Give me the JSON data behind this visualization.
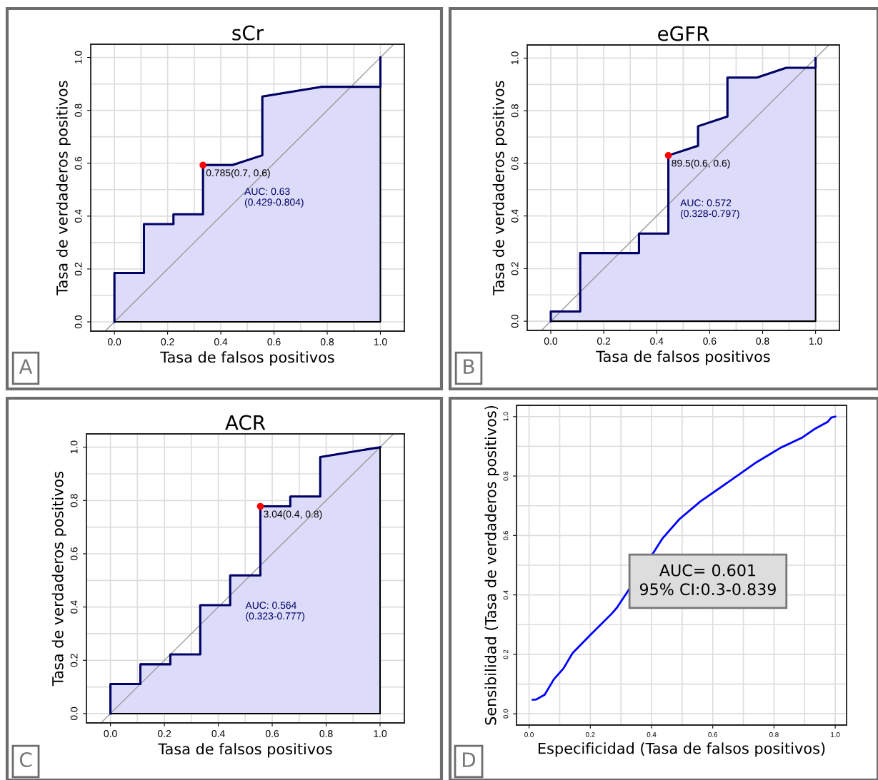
{
  "chart_data": [
    {
      "type": "area",
      "title": "sCr",
      "xlabel": "Tasa de falsos positivos",
      "ylabel": "Tasa de verdaderos positivos",
      "xlim": [
        -0.089,
        1.09
      ],
      "ylim": [
        -0.035,
        1.05
      ],
      "xticks": [
        {
          "value": 0,
          "label": "0.0"
        },
        {
          "value": 0.2,
          "label": "0.2"
        },
        {
          "value": 0.4,
          "label": "0.4"
        },
        {
          "value": 0.6,
          "label": "0.6"
        },
        {
          "value": 0.8,
          "label": "0.8"
        },
        {
          "value": 1,
          "label": "1.0"
        }
      ],
      "yticks": [
        {
          "value": 0,
          "label": "0.0"
        },
        {
          "value": 0.2,
          "label": "0.2"
        },
        {
          "value": 0.4,
          "label": "0.4"
        },
        {
          "value": 0.6,
          "label": "0.6"
        },
        {
          "value": 0.8,
          "label": "0.8"
        },
        {
          "value": 1,
          "label": "1.0"
        }
      ],
      "grid": true,
      "legend": false,
      "series": [
        {
          "color": "#000066",
          "x": [
            0,
            0,
            0.111,
            0.111,
            0.222,
            0.222,
            0.333,
            0.333,
            0.444,
            0.556,
            0.556,
            0.778,
            1,
            1
          ],
          "values": [
            0,
            0.185,
            0.185,
            0.37,
            0.37,
            0.407,
            0.407,
            0.593,
            0.593,
            0.63,
            0.852,
            0.889,
            0.889,
            1
          ]
        },
        {
          "type": "line",
          "color": "#999999",
          "x": [
            -0.035,
            1.05
          ],
          "values": [
            -0.035,
            1.05
          ]
        },
        {
          "type": "scatter",
          "color": "#ff0000",
          "marker": "circle",
          "x": [
            0.333
          ],
          "values": [
            0.593
          ]
        }
      ],
      "annotations": [
        "A",
        "AUC: 0.63\n(0.429-0.804)",
        {
          "text": "0.785(0.7, 0.6)",
          "x": 0.333,
          "y": 0.593
        }
      ]
    },
    {
      "type": "area",
      "title": "eGFR",
      "xlabel": "Tasa de falsos positivos",
      "ylabel": "Tasa de verdaderos positivos",
      "xlim": [
        -0.089,
        1.09
      ],
      "ylim": [
        -0.035,
        1.05
      ],
      "xticks": [
        {
          "value": 0,
          "label": "0.0"
        },
        {
          "value": 0.2,
          "label": "0.2"
        },
        {
          "value": 0.4,
          "label": "0.4"
        },
        {
          "value": 0.6,
          "label": "0.6"
        },
        {
          "value": 0.8,
          "label": "0.8"
        },
        {
          "value": 1,
          "label": "1.0"
        }
      ],
      "yticks": [
        {
          "value": 0,
          "label": "0.0"
        },
        {
          "value": 0.2,
          "label": "0.2"
        },
        {
          "value": 0.4,
          "label": "0.4"
        },
        {
          "value": 0.6,
          "label": "0.6"
        },
        {
          "value": 0.8,
          "label": "0.8"
        },
        {
          "value": 1,
          "label": "1.0"
        }
      ],
      "grid": true,
      "legend": false,
      "series": [
        {
          "color": "#000066",
          "x": [
            0,
            0,
            0.111,
            0.111,
            0.333,
            0.333,
            0.444,
            0.444,
            0.556,
            0.556,
            0.667,
            0.667,
            0.778,
            0.889,
            1,
            1
          ],
          "values": [
            0,
            0.037,
            0.037,
            0.259,
            0.259,
            0.333,
            0.333,
            0.63,
            0.667,
            0.741,
            0.778,
            0.926,
            0.926,
            0.963,
            0.963,
            1
          ]
        },
        {
          "type": "line",
          "color": "#999999",
          "x": [
            -0.035,
            1.05
          ],
          "values": [
            -0.035,
            1.05
          ]
        },
        {
          "type": "scatter",
          "color": "#ff0000",
          "marker": "circle",
          "x": [
            0.444
          ],
          "values": [
            0.63
          ]
        }
      ],
      "annotations": [
        "B",
        "AUC: 0.572\n(0.328-0.797)",
        {
          "text": "89.5(0.6, 0.6)",
          "x": 0.444,
          "y": 0.63
        }
      ]
    },
    {
      "type": "area",
      "title": "ACR",
      "xlabel": "Tasa de falsos positivos",
      "ylabel": "Tasa de verdaderos positivos",
      "xlim": [
        -0.089,
        1.09
      ],
      "ylim": [
        -0.035,
        1.05
      ],
      "xticks": [
        {
          "value": 0,
          "label": "0.0"
        },
        {
          "value": 0.2,
          "label": "0.2"
        },
        {
          "value": 0.4,
          "label": "0.4"
        },
        {
          "value": 0.6,
          "label": "0.6"
        },
        {
          "value": 0.8,
          "label": "0.8"
        },
        {
          "value": 1,
          "label": "1.0"
        }
      ],
      "yticks": [
        {
          "value": 0,
          "label": "0.0"
        },
        {
          "value": 0.2,
          "label": "0.2"
        },
        {
          "value": 0.4,
          "label": "0.4"
        },
        {
          "value": 0.6,
          "label": "0.6"
        },
        {
          "value": 0.8,
          "label": "0.8"
        },
        {
          "value": 1,
          "label": "1.0"
        }
      ],
      "grid": true,
      "legend": false,
      "series": [
        {
          "color": "#000066",
          "x": [
            0,
            0,
            0.111,
            0.111,
            0.222,
            0.222,
            0.333,
            0.333,
            0.444,
            0.444,
            0.556,
            0.556,
            0.667,
            0.667,
            0.778,
            0.778,
            1
          ],
          "values": [
            0,
            0.111,
            0.111,
            0.185,
            0.185,
            0.222,
            0.222,
            0.407,
            0.407,
            0.519,
            0.519,
            0.778,
            0.778,
            0.815,
            0.815,
            0.963,
            1
          ]
        },
        {
          "type": "line",
          "color": "#999999",
          "x": [
            -0.035,
            1.05
          ],
          "values": [
            -0.035,
            1.05
          ]
        },
        {
          "type": "scatter",
          "color": "#ff0000",
          "marker": "circle",
          "x": [
            0.556
          ],
          "values": [
            0.778
          ]
        }
      ],
      "annotations": [
        "C",
        "AUC: 0.564\n(0.323-0.777)",
        {
          "text": "3.04(0.4, 0.8)",
          "x": 0.556,
          "y": 0.778
        }
      ]
    },
    {
      "type": "line",
      "xlabel": "Especificidad (Tasa de falsos positivos)",
      "ylabel": "Sensibilidad (Tasa de verdaderos positivos)",
      "xlim": [
        -0.041,
        1.037
      ],
      "ylim": [
        -0.038,
        1.038
      ],
      "xticks": [
        {
          "value": 0,
          "label": "0.0"
        },
        {
          "value": 0.2,
          "label": "0.2"
        },
        {
          "value": 0.4,
          "label": "0.4"
        },
        {
          "value": 0.6,
          "label": "0.6"
        },
        {
          "value": 0.8,
          "label": "0.8"
        },
        {
          "value": 1,
          "label": "1.0"
        }
      ],
      "yticks": [
        {
          "value": 0,
          "label": "0.0"
        },
        {
          "value": 0.2,
          "label": "0.2"
        },
        {
          "value": 0.4,
          "label": "0.4"
        },
        {
          "value": 0.6,
          "label": "0.6"
        },
        {
          "value": 0.8,
          "label": "0.8"
        },
        {
          "value": 1,
          "label": "1.0"
        }
      ],
      "grid": true,
      "legend": false,
      "series": [
        {
          "color": "#0000ff",
          "x": [
            0.012,
            0.023,
            0.051,
            0.081,
            0.112,
            0.142,
            0.2,
            0.27,
            0.287,
            0.408,
            0.435,
            0.491,
            0.559,
            0.676,
            0.742,
            0.8,
            0.823,
            0.893,
            0.932,
            0.975,
            0.987,
            1
          ],
          "values": [
            0.047,
            0.048,
            0.064,
            0.116,
            0.152,
            0.204,
            0.265,
            0.337,
            0.357,
            0.545,
            0.589,
            0.655,
            0.714,
            0.798,
            0.846,
            0.882,
            0.896,
            0.93,
            0.958,
            0.982,
            0.997,
            1
          ]
        }
      ],
      "annotations": [
        "D",
        "AUC= 0.601\n95% CI:0.3-0.839"
      ]
    }
  ]
}
